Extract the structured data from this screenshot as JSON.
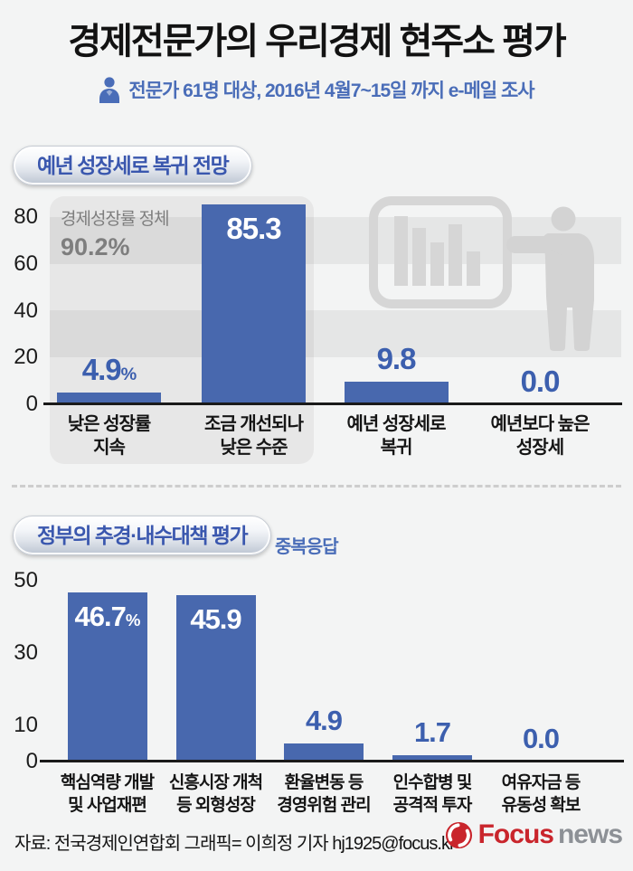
{
  "header": {
    "title": "경제전문가의 우리경제 현주소 평가",
    "subtitle": "전문가 61명 대상, 2016년 4월7~15일 까지 e-메일 조사",
    "subtitle_icon": "person-icon"
  },
  "sections": [
    {
      "badge": "예년 성장세로 복귀 전망"
    },
    {
      "badge": "정부의 추경·내수대책 평가",
      "note": "중복응답"
    }
  ],
  "annotation": {
    "line1": "경제성장률 정체",
    "line2": "90.2%"
  },
  "footer": {
    "credit": "자료: 전국경제인연합회  그래픽= 이희정 기자  hj1925@focus.kr",
    "logo": {
      "word1": "Focus",
      "word2": "news",
      "icon": "focus-swirl-icon"
    }
  },
  "colors": {
    "background": "#f3f4f4",
    "bar_blue": "#4868ae",
    "value_label_blue": "#3c5fae",
    "badge_text_blue": "#3a57ae",
    "subtitle_blue": "#4a6db8",
    "annotation_gray": "#7e7e7e",
    "logo_red": "#c9252c",
    "logo_gray": "#8d9196",
    "decor_gray": "#d6d6d6"
  },
  "chart_data": [
    {
      "type": "bar",
      "title": "예년 성장세로 복귀 전망",
      "categories": [
        [
          "낮은 성장률",
          "지속"
        ],
        [
          "조금 개선되나",
          "낮은 수준"
        ],
        [
          "예년 성장세로",
          "복귀"
        ],
        [
          "예년보다 높은",
          "성장세"
        ]
      ],
      "values": [
        4.9,
        85.3,
        9.8,
        0.0
      ],
      "value_labels": [
        {
          "num": "4.9",
          "suffix": "%"
        },
        {
          "num": "85.3",
          "suffix": ""
        },
        {
          "num": "9.8",
          "suffix": ""
        },
        {
          "num": "0.0",
          "suffix": ""
        }
      ],
      "yticks": [
        80,
        60,
        40,
        20,
        0
      ],
      "ylim": [
        0,
        90
      ],
      "grid": "alternating-bands",
      "annotation": "경제성장률 정체 90.2%",
      "legend": "none"
    },
    {
      "type": "bar",
      "title": "정부의 추경·내수대책 평가",
      "note": "중복응답",
      "categories": [
        [
          "핵심역량 개발",
          "및 사업재편"
        ],
        [
          "신흥시장 개척",
          "등 외형성장"
        ],
        [
          "환율변동 등",
          "경영위험 관리"
        ],
        [
          "인수합병 및",
          "공격적 투자"
        ],
        [
          "여유자금 등",
          "유동성 확보"
        ]
      ],
      "values": [
        46.7,
        45.9,
        4.9,
        1.7,
        0.0
      ],
      "value_labels": [
        {
          "num": "46.7",
          "suffix": "%"
        },
        {
          "num": "45.9",
          "suffix": ""
        },
        {
          "num": "4.9",
          "suffix": ""
        },
        {
          "num": "1.7",
          "suffix": ""
        },
        {
          "num": "0.0",
          "suffix": ""
        }
      ],
      "yticks": [
        50,
        30,
        10,
        0
      ],
      "ylim": [
        0,
        50
      ],
      "grid": "none",
      "legend": "none"
    }
  ]
}
